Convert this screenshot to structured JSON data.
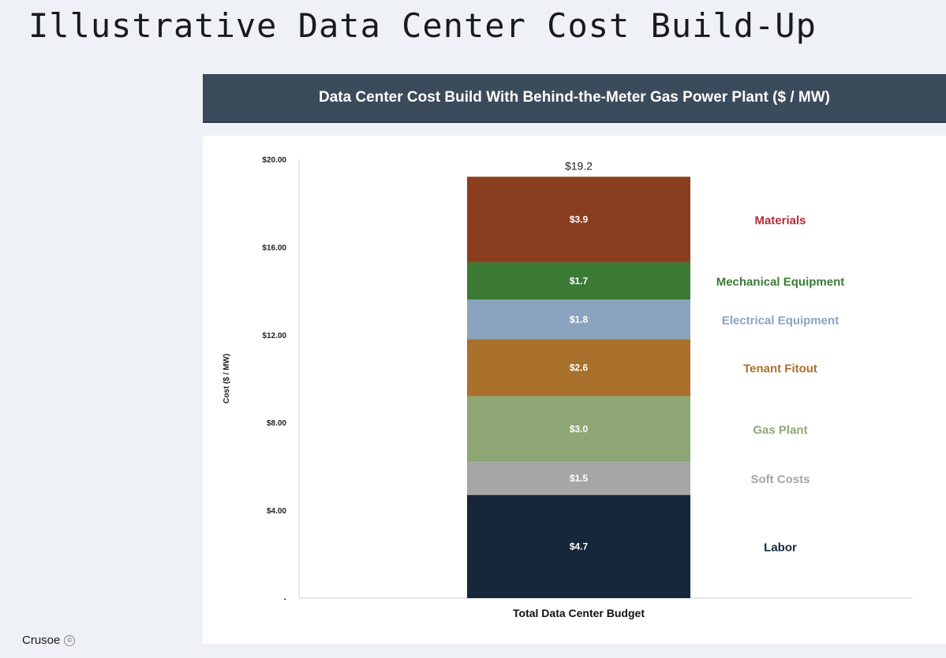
{
  "slide": {
    "title": "Illustrative Data Center Cost Build-Up",
    "logo_text": "Crusoe",
    "logo_mark": "©"
  },
  "chart_data": {
    "type": "bar",
    "stacked": true,
    "title": "Data Center Cost Build With Behind-the-Meter Gas Power Plant ($ / MW)",
    "xlabel": "",
    "ylabel": "Cost ($ / MW)",
    "ylim": [
      0,
      20
    ],
    "yticks": [
      0,
      4,
      8,
      12,
      16,
      20
    ],
    "ytick_labels": [
      "-",
      "$4.00",
      "$8.00",
      "$12.00",
      "$16.00",
      "$20.00"
    ],
    "categories": [
      "Total Data Center Budget"
    ],
    "total_label": "$19.2",
    "legend": "right",
    "series": [
      {
        "name": "Labor",
        "values": [
          4.7
        ],
        "label": "$4.7",
        "color": "#172739",
        "label_color": "#172739"
      },
      {
        "name": "Soft Costs",
        "values": [
          1.5
        ],
        "label": "$1.5",
        "color": "#a6a6a6",
        "label_color": "#a6a6a6"
      },
      {
        "name": "Gas Plant",
        "values": [
          3.0
        ],
        "label": "$3.0",
        "color": "#8ea774",
        "label_color": "#8ea774"
      },
      {
        "name": "Tenant Fitout",
        "values": [
          2.6
        ],
        "label": "$2.6",
        "color": "#a9702b",
        "label_color": "#a9702b"
      },
      {
        "name": "Electrical Equipment",
        "values": [
          1.8
        ],
        "label": "$1.8",
        "color": "#8aa4bf",
        "label_color": "#8aa4bf"
      },
      {
        "name": "Mechanical Equipment",
        "values": [
          1.7
        ],
        "label": "$1.7",
        "color": "#3a7a35",
        "label_color": "#3a7a35"
      },
      {
        "name": "Materials",
        "values": [
          3.9
        ],
        "label": "$3.9",
        "color": "#8b3e1f",
        "label_color": "#b32a3a"
      }
    ]
  }
}
